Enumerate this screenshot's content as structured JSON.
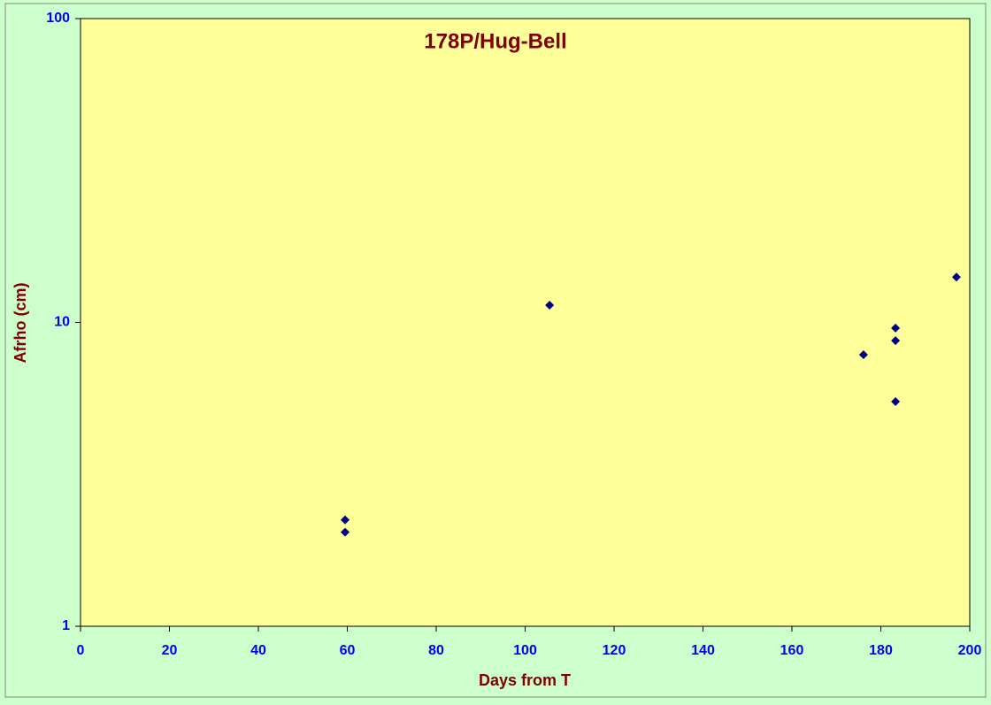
{
  "chart_data": {
    "type": "scatter",
    "title": "178P/Hug-Bell",
    "x_label": "Days from T",
    "y_label": "Afrho (cm)",
    "y_log": true,
    "xlim": [
      0,
      200
    ],
    "xticks": [
      0,
      20,
      40,
      60,
      80,
      100,
      120,
      140,
      160,
      180,
      200
    ],
    "ylim": [
      1,
      100
    ],
    "yticks": [
      1,
      10,
      100
    ],
    "series": [
      {
        "color": "#000080",
        "x": [
          59.5,
          59.5,
          105.5,
          176.1,
          183.3,
          183.3,
          183.3,
          197.0
        ],
        "values": [
          2.24,
          2.04,
          11.4,
          7.83,
          9.58,
          8.71,
          5.49,
          14.1
        ]
      }
    ]
  }
}
